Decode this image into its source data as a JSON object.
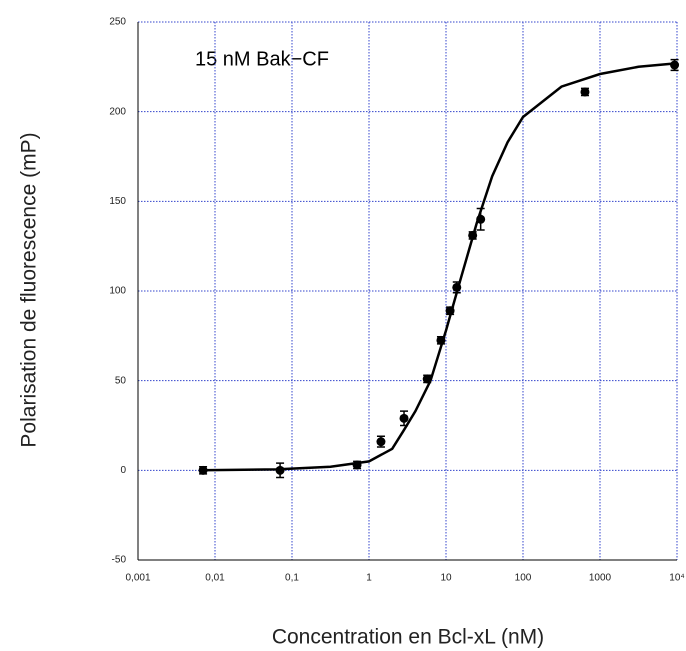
{
  "chart_data": {
    "type": "scatter",
    "annotation": "15 nM Bak−CF",
    "xlabel": "Concentration en Bcl-xL (nM)",
    "ylabel": "Polarisation de fluorescence (mP)",
    "xscale": "log",
    "xlim": [
      0.001,
      10000
    ],
    "xticks": [
      {
        "value": 0.001,
        "label": "0,001"
      },
      {
        "value": 0.01,
        "label": "0,01"
      },
      {
        "value": 0.1,
        "label": "0,1"
      },
      1,
      10,
      100,
      1000,
      {
        "value": 10000,
        "label": "10⁴"
      }
    ],
    "ylim": [
      -50,
      250
    ],
    "yticks": [
      -50,
      0,
      50,
      100,
      150,
      200,
      250
    ],
    "grid": true,
    "grid_color": "#3344cc",
    "color": "#000000",
    "points": {
      "x": [
        0.007,
        0.07,
        0.7,
        1.43,
        2.85,
        5.7,
        8.6,
        11.3,
        13.8,
        22.2,
        28.2,
        638,
        9300
      ],
      "y": [
        0,
        0,
        3,
        16,
        29,
        51,
        72.5,
        89,
        102,
        131,
        140,
        211,
        226
      ],
      "errors": [
        2,
        4,
        2,
        3,
        4,
        2,
        2,
        2,
        3,
        2,
        6,
        2,
        3
      ]
    },
    "fit": {
      "x": [
        0.0063,
        0.063,
        0.316,
        1,
        2,
        2.8,
        4,
        6.3,
        10,
        15.8,
        25.1,
        39.8,
        63.1,
        100,
        316,
        1000,
        3162,
        10000
      ],
      "y": [
        0,
        0.5,
        2,
        5,
        12,
        22,
        33,
        50,
        78,
        108,
        138,
        164,
        183,
        197,
        214,
        221,
        225,
        227
      ]
    }
  }
}
